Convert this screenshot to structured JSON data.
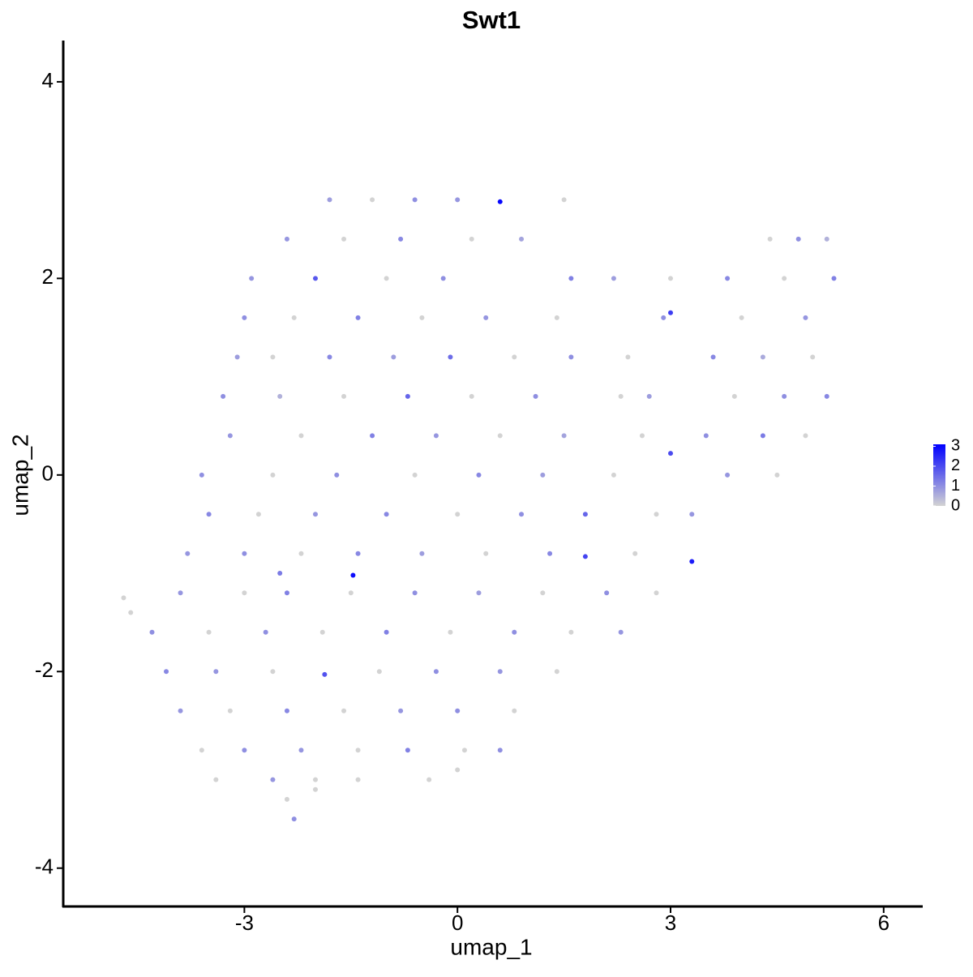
{
  "chart_data": {
    "type": "scatter",
    "title": "Swt1",
    "x_label": "umap_1",
    "y_label": "umap_2",
    "xlim": [
      -5.55,
      6.55
    ],
    "ylim": [
      -4.39,
      4.42
    ],
    "xticks": [
      -3,
      0,
      3,
      6
    ],
    "yticks": [
      -4,
      -2,
      0,
      2,
      4
    ],
    "color_low": "#d3d3d3",
    "color_high": "#0000ff",
    "color_lim": [
      0,
      3.1
    ],
    "color_ticks": [
      0,
      1,
      2,
      3
    ],
    "x": [
      -1.8,
      -1.2,
      -0.6,
      0,
      0.6,
      1.5,
      -2.4,
      -1.6,
      -0.8,
      0.2,
      0.9,
      4.4,
      4.8,
      5.2,
      -2.9,
      -2.0,
      -1.0,
      -0.2,
      1.6,
      2.2,
      3.0,
      3.8,
      4.6,
      5.3,
      -3.0,
      -2.3,
      -1.4,
      -0.5,
      0.4,
      1.4,
      2.9,
      3.0,
      4.0,
      4.9,
      -3.1,
      -2.6,
      -1.8,
      -0.9,
      -0.1,
      0.8,
      1.6,
      2.4,
      3.6,
      4.3,
      5.0,
      -3.3,
      -2.5,
      -1.6,
      -0.7,
      0.2,
      1.1,
      2.3,
      2.7,
      3.9,
      4.6,
      5.2,
      -3.2,
      -2.2,
      -1.2,
      -0.3,
      0.6,
      1.5,
      2.6,
      3.5,
      4.3,
      4.9,
      -3.6,
      -2.6,
      -1.7,
      -0.6,
      0.3,
      1.2,
      2.2,
      3.0,
      3.8,
      4.5,
      -3.5,
      -2.8,
      -2.0,
      -1.0,
      0,
      0.9,
      1.8,
      2.8,
      3.3,
      -3.8,
      -3.0,
      -2.2,
      -1.4,
      -0.5,
      0.4,
      1.3,
      1.8,
      3.3,
      2.5,
      -1.47,
      -2.5,
      -4.7,
      -4.6,
      -3.9,
      -3.0,
      -2.4,
      -1.5,
      -0.6,
      0.3,
      1.2,
      2.1,
      2.8,
      -4.3,
      -3.5,
      -2.7,
      -1.9,
      -1.0,
      -0.1,
      0.8,
      1.6,
      2.3,
      -4.1,
      -3.4,
      -2.6,
      -1.87,
      -1.1,
      -0.3,
      0.6,
      1.4,
      -3.9,
      -3.2,
      -2.4,
      -1.6,
      -0.8,
      0,
      0.8,
      -3.6,
      -3.0,
      -2.2,
      -1.4,
      -0.7,
      0.1,
      0.6,
      -3.4,
      -2.6,
      -2.0,
      -1.4,
      -0.4,
      0,
      -2.3,
      -2.4,
      -2.0
    ],
    "values": [
      2.8,
      2.8,
      2.8,
      2.8,
      2.78,
      2.8,
      2.4,
      2.4,
      2.4,
      2.4,
      2.4,
      2.4,
      2.4,
      2.4,
      2.0,
      2.0,
      2.0,
      2.0,
      2.0,
      2.0,
      2.0,
      2.0,
      2.0,
      2.0,
      1.6,
      1.6,
      1.6,
      1.6,
      1.6,
      1.6,
      1.6,
      1.65,
      1.6,
      1.6,
      1.2,
      1.2,
      1.2,
      1.2,
      1.2,
      1.2,
      1.2,
      1.2,
      1.2,
      1.2,
      1.2,
      0.8,
      0.8,
      0.8,
      0.8,
      0.8,
      0.8,
      0.8,
      0.8,
      0.8,
      0.8,
      0.8,
      0.4,
      0.4,
      0.4,
      0.4,
      0.4,
      0.4,
      0.4,
      0.4,
      0.4,
      0.4,
      0,
      0,
      0,
      0,
      0,
      0,
      0,
      0.22,
      0,
      0,
      -0.4,
      -0.4,
      -0.4,
      -0.4,
      -0.4,
      -0.4,
      -0.4,
      -0.4,
      -0.4,
      -0.8,
      -0.8,
      -0.8,
      -0.8,
      -0.8,
      -0.8,
      -0.8,
      -0.83,
      -0.88,
      -0.8,
      -1.02,
      -1.0,
      -1.25,
      -1.4,
      -1.2,
      -1.2,
      -1.2,
      -1.2,
      -1.2,
      -1.2,
      -1.2,
      -1.2,
      -1.2,
      -1.6,
      -1.6,
      -1.6,
      -1.6,
      -1.6,
      -1.6,
      -1.6,
      -1.6,
      -1.6,
      -2.0,
      -2.0,
      -2.0,
      -2.03,
      -2.0,
      -2.0,
      -2.0,
      -2.0,
      -2.4,
      -2.4,
      -2.4,
      -2.4,
      -2.4,
      -2.4,
      -2.4,
      -2.8,
      -2.8,
      -2.8,
      -2.8,
      -2.8,
      -2.8,
      -2.8,
      -3.1,
      -3.1,
      -3.1,
      -3.1,
      -3.1,
      -3.0,
      -3.5,
      -3.3,
      -3.2
    ],
    "color_values": [
      0.8,
      0,
      1,
      0.9,
      3,
      0,
      0.9,
      0,
      1.1,
      0,
      0.7,
      0,
      1,
      0.5,
      0.9,
      1.8,
      0,
      1,
      1.2,
      0.8,
      0,
      1.1,
      0,
      1.2,
      1,
      0,
      1.2,
      0,
      0.9,
      0,
      1,
      2.2,
      0,
      0.9,
      0.8,
      0,
      1.1,
      0.8,
      1.5,
      0,
      1,
      0,
      1.1,
      0.6,
      0,
      1,
      0.5,
      0,
      1.6,
      0,
      1,
      0,
      0.8,
      0,
      1,
      1.1,
      0.9,
      0,
      1.2,
      0.9,
      0,
      0.7,
      0,
      1,
      1.3,
      0,
      1,
      0,
      1,
      0,
      1.1,
      0.8,
      0,
      2,
      0.9,
      0,
      1.1,
      0,
      0.9,
      1.1,
      0,
      1,
      1.6,
      0,
      0.9,
      0.9,
      1,
      0,
      1.1,
      0.8,
      0,
      1.1,
      2.1,
      2.7,
      0,
      2.9,
      1.3,
      0,
      0,
      0.9,
      0,
      1.2,
      0,
      1,
      0.8,
      0,
      1,
      0,
      1,
      0,
      1,
      0,
      1.2,
      0,
      1,
      0,
      0.9,
      1.1,
      0.9,
      0,
      1.9,
      0,
      1,
      0.9,
      0,
      0.9,
      0,
      1.1,
      0,
      0.9,
      1,
      0,
      0,
      1,
      0.9,
      0,
      1.2,
      0,
      1,
      0,
      0.9,
      0,
      0,
      0,
      0,
      1,
      0,
      0
    ]
  }
}
